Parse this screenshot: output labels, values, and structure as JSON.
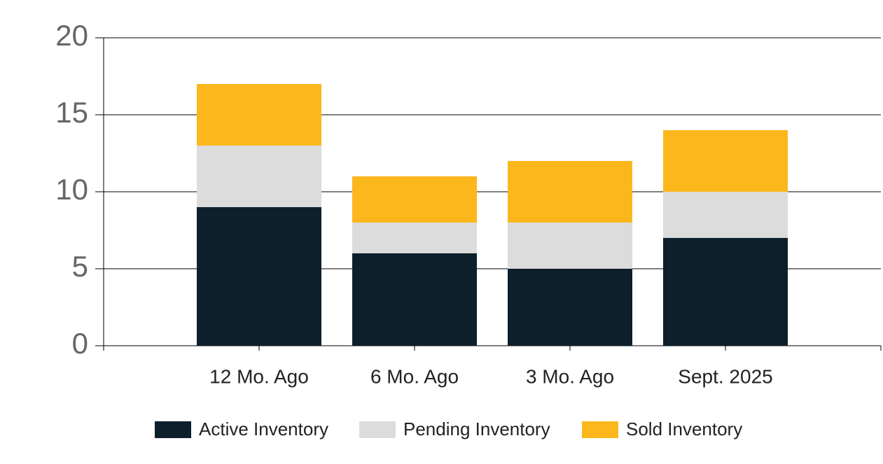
{
  "chart_data": {
    "type": "stacked_bar",
    "categories": [
      "12 Mo. Ago",
      "6 Mo. Ago",
      "3 Mo. Ago",
      "Sept. 2025"
    ],
    "series": [
      {
        "name": "Active Inventory",
        "color": "#0d1f2b",
        "values": [
          9,
          6,
          5,
          7
        ]
      },
      {
        "name": "Pending Inventory",
        "color": "#dcdcdc",
        "values": [
          4,
          2,
          3,
          3
        ]
      },
      {
        "name": "Sold Inventory",
        "color": "#fbb71c",
        "values": [
          4,
          3,
          4,
          4
        ]
      }
    ],
    "ylim": [
      0,
      20
    ],
    "yticks": [
      0,
      5,
      10,
      15,
      20
    ],
    "grid": true,
    "legend": "bottom"
  }
}
